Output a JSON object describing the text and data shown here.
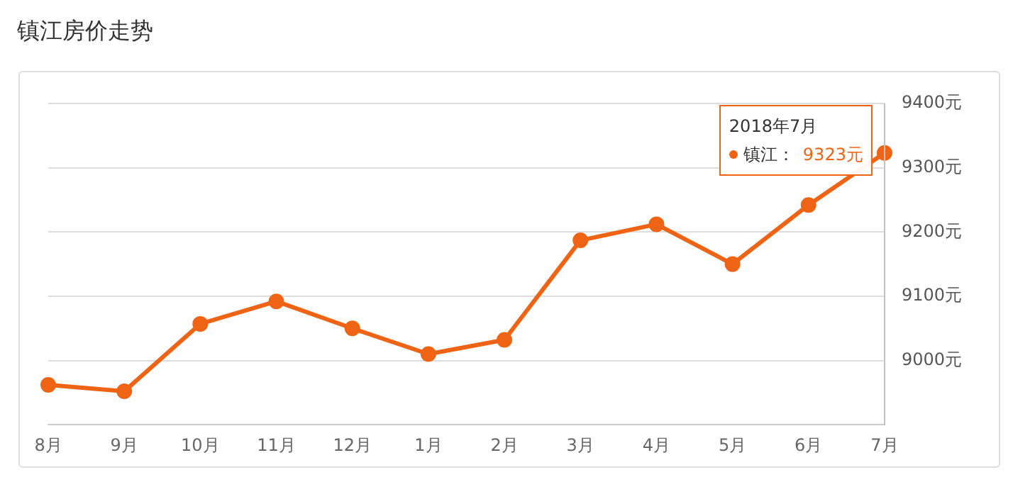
{
  "chart_data": {
    "type": "line",
    "title": "镇江房价走势",
    "categories": [
      "8月",
      "9月",
      "10月",
      "11月",
      "12月",
      "1月",
      "2月",
      "3月",
      "4月",
      "5月",
      "6月",
      "7月"
    ],
    "series": [
      {
        "name": "镇江：",
        "color": "#ef6414",
        "values": [
          8962,
          8952,
          9057,
          9092,
          9050,
          9010,
          9032,
          9187,
          9212,
          9150,
          9242,
          9323
        ],
        "value_labels": [
          null,
          null,
          null,
          null,
          null,
          null,
          null,
          null,
          null,
          null,
          null,
          "9323元"
        ]
      }
    ],
    "ylim": [
      8900,
      9400
    ],
    "yticks": [
      {
        "value": 9000,
        "label": "9000元"
      },
      {
        "value": 9100,
        "label": "9100元"
      },
      {
        "value": 9200,
        "label": "9200元"
      },
      {
        "value": 9300,
        "label": "9300元"
      },
      {
        "value": 9400,
        "label": "9400元"
      }
    ],
    "grid": "y",
    "marker": "circle",
    "line_style": "solid",
    "annotations": [
      "2018年7月"
    ]
  }
}
